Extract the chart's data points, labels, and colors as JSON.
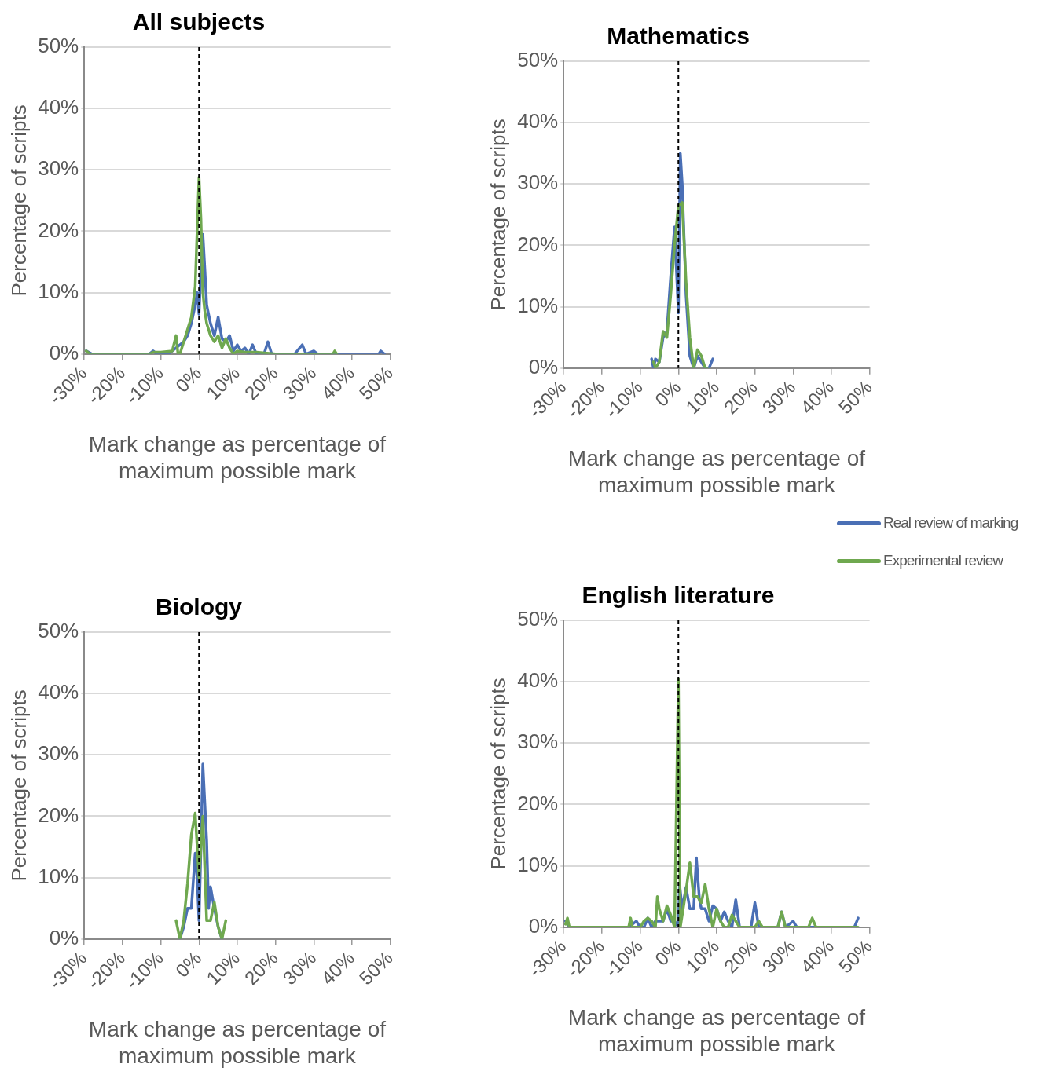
{
  "chart_data": [
    {
      "type": "line",
      "title": "All subjects",
      "xlabel": "Mark change as percentage of maximum possible mark",
      "ylabel": "Percentage of scripts",
      "xlim": [
        -30,
        50
      ],
      "ylim": [
        0,
        50
      ],
      "marker": "none",
      "line_style": "solid",
      "grid": "y",
      "legend": false,
      "xticks": [
        {
          "value": -30,
          "label": "-30%"
        },
        {
          "value": -20,
          "label": "-20%"
        },
        {
          "value": -10,
          "label": "-10%"
        },
        {
          "value": 0,
          "label": "0%"
        },
        {
          "value": 10,
          "label": "10%"
        },
        {
          "value": 20,
          "label": "20%"
        },
        {
          "value": 30,
          "label": "30%"
        },
        {
          "value": 40,
          "label": "40%"
        },
        {
          "value": 50,
          "label": "50%"
        }
      ],
      "yticks": [
        {
          "value": 0,
          "label": "0%"
        },
        {
          "value": 10,
          "label": "10%"
        },
        {
          "value": 20,
          "label": "20%"
        },
        {
          "value": 30,
          "label": "30%"
        },
        {
          "value": 40,
          "label": "40%"
        },
        {
          "value": 50,
          "label": "50%"
        }
      ],
      "ref_lines": [
        {
          "axis": "x",
          "value": 0,
          "color": "#000000",
          "line_style": "dashed"
        }
      ],
      "series": [
        {
          "color": "#4a6fb5",
          "x": [
            -29.5,
            -28,
            -13,
            -12,
            -11,
            -8,
            -7,
            -6,
            -5,
            -4,
            -3,
            -2,
            -1,
            -0.5,
            0,
            0.5,
            1,
            1.5,
            2,
            3,
            4,
            5,
            6,
            7,
            8,
            9,
            10,
            11,
            12,
            13,
            14,
            15,
            17,
            18,
            19,
            25,
            27,
            28,
            30,
            31,
            47,
            47.5,
            48.5
          ],
          "values": [
            0.5,
            0,
            0,
            0.5,
            0,
            0,
            0.5,
            1,
            1.5,
            2,
            3,
            5,
            8,
            10,
            6.5,
            14,
            19.5,
            14,
            8,
            5,
            3,
            6,
            2.5,
            2,
            3,
            0.5,
            1.5,
            0.5,
            1,
            0,
            1.5,
            0,
            0,
            2,
            0,
            0,
            1.5,
            0,
            0.5,
            0,
            0,
            0.5,
            0
          ]
        },
        {
          "color": "#6fa84f",
          "x": [
            -29.5,
            -28.5,
            -13,
            -12,
            -10,
            -7,
            -6,
            -5.5,
            -5,
            -4,
            -3,
            -2,
            -1,
            -0.5,
            0,
            0.5,
            1,
            1.5,
            2,
            3,
            4,
            5,
            6,
            7,
            8,
            9,
            10,
            12,
            15,
            20,
            35,
            35.5,
            36
          ],
          "values": [
            0.5,
            0,
            0,
            0.3,
            0.3,
            0.5,
            3,
            0,
            0,
            2,
            4,
            6,
            11,
            20,
            28.8,
            22,
            10,
            7,
            5,
            3,
            2,
            3,
            1,
            2.5,
            1,
            0,
            0.5,
            0.3,
            0.3,
            0,
            0,
            0.5,
            0
          ]
        }
      ]
    },
    {
      "type": "line",
      "title": "Mathematics",
      "xlabel": "Mark change as percentage of maximum possible mark",
      "ylabel": "Percentage of scripts",
      "xlim": [
        -30,
        50
      ],
      "ylim": [
        0,
        50
      ],
      "marker": "none",
      "line_style": "solid",
      "grid": "y",
      "legend": "bottom right",
      "xticks": [
        {
          "value": -30,
          "label": "-30%"
        },
        {
          "value": -20,
          "label": "-20%"
        },
        {
          "value": -10,
          "label": "-10%"
        },
        {
          "value": 0,
          "label": "0%"
        },
        {
          "value": 10,
          "label": "10%"
        },
        {
          "value": 20,
          "label": "20%"
        },
        {
          "value": 30,
          "label": "30%"
        },
        {
          "value": 40,
          "label": "40%"
        },
        {
          "value": 50,
          "label": "50%"
        }
      ],
      "yticks": [
        {
          "value": 0,
          "label": "0%"
        },
        {
          "value": 10,
          "label": "10%"
        },
        {
          "value": 20,
          "label": "20%"
        },
        {
          "value": 30,
          "label": "30%"
        },
        {
          "value": 40,
          "label": "40%"
        },
        {
          "value": 50,
          "label": "50%"
        }
      ],
      "ref_lines": [
        {
          "axis": "x",
          "value": 0,
          "color": "#000000",
          "line_style": "dashed"
        }
      ],
      "series": [
        {
          "name": "Real review of marking",
          "color": "#4a6fb5",
          "x": [
            -7,
            -6.5,
            -6,
            -5,
            -4,
            -3,
            -2,
            -1,
            0,
            0.5,
            1,
            2,
            3,
            4,
            5,
            6,
            7,
            8,
            9
          ],
          "values": [
            1.5,
            0,
            1.5,
            1,
            5,
            6,
            15,
            23,
            9,
            35,
            30,
            12,
            2,
            0,
            2,
            1,
            0,
            0,
            1.5
          ]
        },
        {
          "name": "Experimental review",
          "color": "#6fa84f",
          "x": [
            -6.5,
            -6,
            -5,
            -4,
            -3,
            -2,
            -1,
            0,
            1,
            2,
            3,
            4,
            5,
            6,
            7,
            7.5
          ],
          "values": [
            1,
            0,
            1,
            6,
            5,
            12,
            20,
            26.5,
            27,
            14,
            5,
            0,
            3,
            2,
            0,
            0
          ]
        }
      ]
    },
    {
      "type": "line",
      "title": "Biology",
      "xlabel": "Mark change as percentage of maximum possible mark",
      "ylabel": "Percentage of scripts",
      "xlim": [
        -30,
        50
      ],
      "ylim": [
        0,
        50
      ],
      "marker": "none",
      "line_style": "solid",
      "grid": "y",
      "legend": false,
      "xticks": [
        {
          "value": -30,
          "label": "-30%"
        },
        {
          "value": -20,
          "label": "-20%"
        },
        {
          "value": -10,
          "label": "-10%"
        },
        {
          "value": 0,
          "label": "0%"
        },
        {
          "value": 10,
          "label": "10%"
        },
        {
          "value": 20,
          "label": "20%"
        },
        {
          "value": 30,
          "label": "30%"
        },
        {
          "value": 40,
          "label": "40%"
        },
        {
          "value": 50,
          "label": "50%"
        }
      ],
      "yticks": [
        {
          "value": 0,
          "label": "0%"
        },
        {
          "value": 10,
          "label": "10%"
        },
        {
          "value": 20,
          "label": "20%"
        },
        {
          "value": 30,
          "label": "30%"
        },
        {
          "value": 40,
          "label": "40%"
        },
        {
          "value": 50,
          "label": "50%"
        }
      ],
      "ref_lines": [
        {
          "axis": "x",
          "value": 0,
          "color": "#000000",
          "line_style": "dashed"
        }
      ],
      "series": [
        {
          "color": "#4a6fb5",
          "x": [
            -5,
            -4,
            -3,
            -2,
            -1,
            -0.5,
            0,
            0.5,
            1,
            2,
            2.5,
            3,
            4,
            5,
            6
          ],
          "values": [
            0,
            2,
            5,
            5,
            14,
            10,
            3,
            15,
            28.5,
            16,
            5,
            8.5,
            5,
            2,
            0
          ]
        },
        {
          "color": "#6fa84f",
          "x": [
            -6,
            -5,
            -4,
            -3,
            -2,
            -1,
            0,
            0.5,
            1,
            2,
            3,
            4,
            5,
            6,
            7
          ],
          "values": [
            3,
            0,
            3,
            9,
            17,
            20.5,
            10,
            15,
            20,
            3,
            3,
            6,
            2,
            0,
            3
          ]
        }
      ]
    },
    {
      "type": "line",
      "title": "English literature",
      "xlabel": "Mark change as percentage of maximum possible mark",
      "ylabel": "Percentage of scripts",
      "xlim": [
        -30,
        50
      ],
      "ylim": [
        0,
        50
      ],
      "marker": "none",
      "line_style": "solid",
      "grid": "y",
      "legend": false,
      "xticks": [
        {
          "value": -30,
          "label": "-30%"
        },
        {
          "value": -20,
          "label": "-20%"
        },
        {
          "value": -10,
          "label": "-10%"
        },
        {
          "value": 0,
          "label": "0%"
        },
        {
          "value": 10,
          "label": "10%"
        },
        {
          "value": 20,
          "label": "20%"
        },
        {
          "value": 30,
          "label": "30%"
        },
        {
          "value": 40,
          "label": "40%"
        },
        {
          "value": 50,
          "label": "50%"
        }
      ],
      "yticks": [
        {
          "value": 0,
          "label": "0%"
        },
        {
          "value": 10,
          "label": "10%"
        },
        {
          "value": 20,
          "label": "20%"
        },
        {
          "value": 30,
          "label": "30%"
        },
        {
          "value": 40,
          "label": "40%"
        },
        {
          "value": 50,
          "label": "50%"
        }
      ],
      "ref_lines": [
        {
          "axis": "x",
          "value": 0,
          "color": "#000000",
          "line_style": "dashed"
        }
      ],
      "series": [
        {
          "color": "#4a6fb5",
          "x": [
            -29.5,
            -28.5,
            -13,
            -11,
            -10,
            -9,
            -8,
            -7,
            -6,
            -5,
            -4,
            -3,
            -2,
            -1,
            0,
            0.3,
            1,
            2,
            3,
            4,
            4.7,
            5.5,
            6,
            7,
            8,
            9,
            10,
            11,
            12,
            13,
            14,
            15,
            16,
            19,
            20,
            21,
            26,
            27,
            28,
            30,
            31,
            46,
            47
          ],
          "values": [
            1,
            0,
            0,
            1,
            0,
            0,
            1.5,
            0,
            1,
            1,
            1,
            3,
            1,
            1,
            0,
            7,
            3,
            6.5,
            3,
            3,
            11.3,
            4.5,
            3,
            3,
            1,
            3.5,
            3,
            1,
            2.5,
            1,
            0,
            4.5,
            0,
            0,
            4,
            0,
            0,
            2.5,
            0,
            1,
            0,
            0,
            1.5
          ]
        },
        {
          "color": "#6fa84f",
          "x": [
            -29.5,
            -29,
            -28.5,
            -13,
            -12.5,
            -12,
            -10,
            -9,
            -8,
            -7,
            -6,
            -5.5,
            -5,
            -4,
            -3,
            -2,
            -1,
            0,
            0.5,
            2,
            3,
            4,
            5,
            6,
            7,
            8,
            9,
            10,
            11,
            12,
            13,
            14,
            15,
            16,
            20,
            21,
            22,
            26,
            27,
            28,
            34,
            35,
            36,
            47
          ],
          "values": [
            0.5,
            1.5,
            0,
            0,
            1.5,
            0,
            0,
            1,
            1.5,
            1,
            0,
            5,
            3,
            1,
            3.5,
            2,
            0,
            40.5,
            0,
            6,
            10.5,
            5,
            5,
            4,
            7,
            3,
            0,
            3,
            1,
            0,
            0,
            2,
            1,
            0,
            0,
            1,
            0,
            0,
            2.5,
            0,
            0,
            1.5,
            0,
            0
          ]
        }
      ]
    }
  ]
}
